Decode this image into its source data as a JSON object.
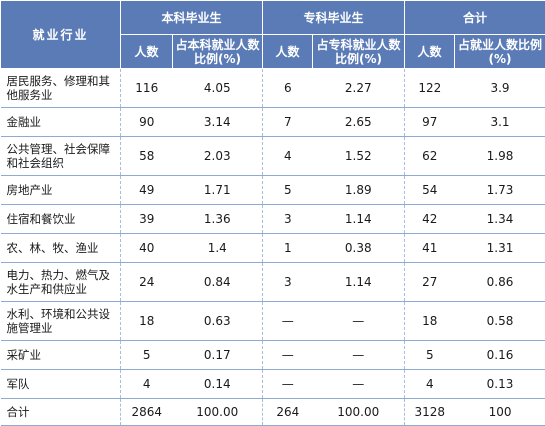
{
  "header": {
    "industry": "就业行业",
    "undergrad": "本科毕业生",
    "junior": "专科毕业生",
    "total": "合计",
    "count": "人数",
    "undergrad_pct": "占本科就业人数比例(%)",
    "junior_pct": "占专科就业人数比例(%)",
    "total_pct": "占就业人数比例(%)"
  },
  "rows": [
    {
      "industry": "居民服务、修理和其他服务业",
      "u_count": "116",
      "u_pct": "4.05",
      "j_count": "6",
      "j_pct": "2.27",
      "t_count": "122",
      "t_pct": "3.9"
    },
    {
      "industry": "金融业",
      "u_count": "90",
      "u_pct": "3.14",
      "j_count": "7",
      "j_pct": "2.65",
      "t_count": "97",
      "t_pct": "3.1"
    },
    {
      "industry": "公共管理、社会保障和社会组织",
      "u_count": "58",
      "u_pct": "2.03",
      "j_count": "4",
      "j_pct": "1.52",
      "t_count": "62",
      "t_pct": "1.98"
    },
    {
      "industry": "房地产业",
      "u_count": "49",
      "u_pct": "1.71",
      "j_count": "5",
      "j_pct": "1.89",
      "t_count": "54",
      "t_pct": "1.73"
    },
    {
      "industry": "住宿和餐饮业",
      "u_count": "39",
      "u_pct": "1.36",
      "j_count": "3",
      "j_pct": "1.14",
      "t_count": "42",
      "t_pct": "1.34"
    },
    {
      "industry": "农、林、牧、渔业",
      "u_count": "40",
      "u_pct": "1.4",
      "j_count": "1",
      "j_pct": "0.38",
      "t_count": "41",
      "t_pct": "1.31"
    },
    {
      "industry": "电力、热力、燃气及水生产和供应业",
      "u_count": "24",
      "u_pct": "0.84",
      "j_count": "3",
      "j_pct": "1.14",
      "t_count": "27",
      "t_pct": "0.86"
    },
    {
      "industry": "水利、环境和公共设施管理业",
      "u_count": "18",
      "u_pct": "0.63",
      "j_count": "—",
      "j_pct": "—",
      "t_count": "18",
      "t_pct": "0.58"
    },
    {
      "industry": "采矿业",
      "u_count": "5",
      "u_pct": "0.17",
      "j_count": "—",
      "j_pct": "—",
      "t_count": "5",
      "t_pct": "0.16"
    },
    {
      "industry": "军队",
      "u_count": "4",
      "u_pct": "0.14",
      "j_count": "—",
      "j_pct": "—",
      "t_count": "4",
      "t_pct": "0.13"
    },
    {
      "industry": "合计",
      "u_count": "2864",
      "u_pct": "100.00",
      "j_count": "264",
      "j_pct": "100.00",
      "t_count": "3128",
      "t_pct": "100"
    }
  ],
  "colors": {
    "header_bg": "#5a7bb6",
    "rule": "#8faad3"
  }
}
